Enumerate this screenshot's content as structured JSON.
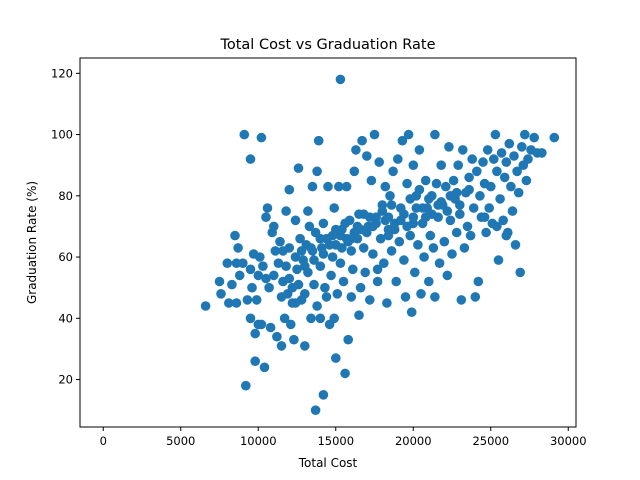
{
  "chart_data": {
    "type": "scatter",
    "title": "Total Cost vs Graduation Rate",
    "xlabel": "Total Cost",
    "ylabel": "Graduation Rate (%)",
    "xlim": [
      -1500,
      30500
    ],
    "ylim": [
      4.5,
      125
    ],
    "xticks": [
      0,
      5000,
      10000,
      15000,
      20000,
      25000,
      30000
    ],
    "yticks": [
      20,
      40,
      60,
      80,
      100,
      120
    ],
    "grid": false,
    "legend": "none",
    "marker_color": "#1f77b4",
    "points": [
      [
        6600,
        44
      ],
      [
        7500,
        52
      ],
      [
        7600,
        48
      ],
      [
        8000,
        58
      ],
      [
        8100,
        45
      ],
      [
        8300,
        51
      ],
      [
        8500,
        67
      ],
      [
        8600,
        45
      ],
      [
        8600,
        58
      ],
      [
        8700,
        63
      ],
      [
        8800,
        54
      ],
      [
        9000,
        58
      ],
      [
        9100,
        100
      ],
      [
        9200,
        18
      ],
      [
        9300,
        46
      ],
      [
        9500,
        40
      ],
      [
        9500,
        56
      ],
      [
        9500,
        92
      ],
      [
        9600,
        50
      ],
      [
        9700,
        61
      ],
      [
        9800,
        26
      ],
      [
        9800,
        35
      ],
      [
        9900,
        46
      ],
      [
        10000,
        38
      ],
      [
        10000,
        54
      ],
      [
        10100,
        60
      ],
      [
        10200,
        38
      ],
      [
        10200,
        99
      ],
      [
        10300,
        57
      ],
      [
        10400,
        24
      ],
      [
        10500,
        53
      ],
      [
        10500,
        73
      ],
      [
        10600,
        76
      ],
      [
        10700,
        50
      ],
      [
        10800,
        37
      ],
      [
        10900,
        68
      ],
      [
        11000,
        54
      ],
      [
        11000,
        70
      ],
      [
        11100,
        62
      ],
      [
        11200,
        34
      ],
      [
        11300,
        58
      ],
      [
        11400,
        65
      ],
      [
        11500,
        31
      ],
      [
        11500,
        47
      ],
      [
        11600,
        52
      ],
      [
        11700,
        40
      ],
      [
        11800,
        57
      ],
      [
        11800,
        75
      ],
      [
        11900,
        48
      ],
      [
        12000,
        63
      ],
      [
        12000,
        82
      ],
      [
        12100,
        38
      ],
      [
        12200,
        50
      ],
      [
        12200,
        45
      ],
      [
        12300,
        33
      ],
      [
        12400,
        60
      ],
      [
        12400,
        72
      ],
      [
        12500,
        56
      ],
      [
        12600,
        51
      ],
      [
        12600,
        89
      ],
      [
        12700,
        66
      ],
      [
        12800,
        46
      ],
      [
        12900,
        59
      ],
      [
        13000,
        48
      ],
      [
        13000,
        31
      ],
      [
        13100,
        64
      ],
      [
        13200,
        55
      ],
      [
        13200,
        75
      ],
      [
        13300,
        70
      ],
      [
        13400,
        40
      ],
      [
        13500,
        83
      ],
      [
        13500,
        62
      ],
      [
        13600,
        51
      ],
      [
        13700,
        10
      ],
      [
        13700,
        68
      ],
      [
        13800,
        44
      ],
      [
        13800,
        88
      ],
      [
        13900,
        98
      ],
      [
        14000,
        40
      ],
      [
        14000,
        57
      ],
      [
        14100,
        63
      ],
      [
        14200,
        15
      ],
      [
        14200,
        71
      ],
      [
        14300,
        50
      ],
      [
        14400,
        47
      ],
      [
        14400,
        66
      ],
      [
        14500,
        83
      ],
      [
        14600,
        38
      ],
      [
        14700,
        54
      ],
      [
        14800,
        60
      ],
      [
        14900,
        40
      ],
      [
        14900,
        76
      ],
      [
        15000,
        27
      ],
      [
        15000,
        64
      ],
      [
        15100,
        48
      ],
      [
        15200,
        83
      ],
      [
        15300,
        118
      ],
      [
        15300,
        58
      ],
      [
        15400,
        69
      ],
      [
        15500,
        52
      ],
      [
        15600,
        22
      ],
      [
        15700,
        66
      ],
      [
        15700,
        83
      ],
      [
        15800,
        33
      ],
      [
        15900,
        72
      ],
      [
        16000,
        47
      ],
      [
        16000,
        62
      ],
      [
        16100,
        56
      ],
      [
        16200,
        88
      ],
      [
        16300,
        95
      ],
      [
        16400,
        66
      ],
      [
        16500,
        41
      ],
      [
        16500,
        74
      ],
      [
        16600,
        50
      ],
      [
        16700,
        98
      ],
      [
        16800,
        63
      ],
      [
        16900,
        55
      ],
      [
        17000,
        93
      ],
      [
        17100,
        70
      ],
      [
        17200,
        46
      ],
      [
        17300,
        85
      ],
      [
        17400,
        61
      ],
      [
        17500,
        100
      ],
      [
        17600,
        73
      ],
      [
        17700,
        56
      ],
      [
        17700,
        52
      ],
      [
        17800,
        91
      ],
      [
        17900,
        66
      ],
      [
        18000,
        77
      ],
      [
        18100,
        58
      ],
      [
        18200,
        83
      ],
      [
        18300,
        45
      ],
      [
        18400,
        69
      ],
      [
        18500,
        80
      ],
      [
        18600,
        62
      ],
      [
        18700,
        88
      ],
      [
        18800,
        71
      ],
      [
        18900,
        52
      ],
      [
        19000,
        92
      ],
      [
        19100,
        65
      ],
      [
        19200,
        76
      ],
      [
        19300,
        98
      ],
      [
        19400,
        59
      ],
      [
        19500,
        47
      ],
      [
        19600,
        84
      ],
      [
        19700,
        100
      ],
      [
        19800,
        67
      ],
      [
        19900,
        42
      ],
      [
        20000,
        90
      ],
      [
        20000,
        73
      ],
      [
        20100,
        55
      ],
      [
        20200,
        80
      ],
      [
        20300,
        64
      ],
      [
        20400,
        95
      ],
      [
        20500,
        48
      ],
      [
        20600,
        71
      ],
      [
        20700,
        60
      ],
      [
        20800,
        85
      ],
      [
        20900,
        76
      ],
      [
        21000,
        52
      ],
      [
        21100,
        67
      ],
      [
        21200,
        80
      ],
      [
        21300,
        63
      ],
      [
        21400,
        100
      ],
      [
        21400,
        47
      ],
      [
        21500,
        84
      ],
      [
        21600,
        73
      ],
      [
        21700,
        58
      ],
      [
        21800,
        90
      ],
      [
        21900,
        77
      ],
      [
        22000,
        65
      ],
      [
        22100,
        83
      ],
      [
        22200,
        54
      ],
      [
        22300,
        96
      ],
      [
        22400,
        72
      ],
      [
        22500,
        61
      ],
      [
        22600,
        85
      ],
      [
        22700,
        79
      ],
      [
        22800,
        68
      ],
      [
        22900,
        90
      ],
      [
        23000,
        74
      ],
      [
        23100,
        46
      ],
      [
        23200,
        95
      ],
      [
        23300,
        63
      ],
      [
        23400,
        81
      ],
      [
        23500,
        70
      ],
      [
        23600,
        86
      ],
      [
        23700,
        67
      ],
      [
        23800,
        92
      ],
      [
        23900,
        76
      ],
      [
        24000,
        47
      ],
      [
        24100,
        88
      ],
      [
        24200,
        52
      ],
      [
        24300,
        80
      ],
      [
        24400,
        73
      ],
      [
        24500,
        91
      ],
      [
        24600,
        84
      ],
      [
        24700,
        68
      ],
      [
        24800,
        95
      ],
      [
        24900,
        76
      ],
      [
        25000,
        83
      ],
      [
        25100,
        71
      ],
      [
        25200,
        92
      ],
      [
        25300,
        100
      ],
      [
        25400,
        88
      ],
      [
        25500,
        59
      ],
      [
        25600,
        79
      ],
      [
        25700,
        94
      ],
      [
        25800,
        72
      ],
      [
        25900,
        86
      ],
      [
        26000,
        91
      ],
      [
        26100,
        68
      ],
      [
        26200,
        97
      ],
      [
        26300,
        83
      ],
      [
        26400,
        75
      ],
      [
        26500,
        93
      ],
      [
        26600,
        64
      ],
      [
        26700,
        88
      ],
      [
        26800,
        81
      ],
      [
        26900,
        55
      ],
      [
        27000,
        96
      ],
      [
        27100,
        90
      ],
      [
        27200,
        100
      ],
      [
        27300,
        85
      ],
      [
        27400,
        92
      ],
      [
        27600,
        95
      ],
      [
        27800,
        99
      ],
      [
        28000,
        94
      ],
      [
        28300,
        94
      ],
      [
        29100,
        99
      ],
      [
        14000,
        66
      ],
      [
        14600,
        64
      ],
      [
        15300,
        67
      ],
      [
        15800,
        65
      ],
      [
        16400,
        70
      ],
      [
        17000,
        68
      ],
      [
        17600,
        71
      ],
      [
        18200,
        72
      ],
      [
        18800,
        69
      ],
      [
        19400,
        74
      ],
      [
        20000,
        71
      ],
      [
        20600,
        76
      ],
      [
        21200,
        74
      ],
      [
        21800,
        78
      ],
      [
        22400,
        80
      ],
      [
        23000,
        77
      ],
      [
        23600,
        82
      ],
      [
        12800,
        62
      ],
      [
        13400,
        63
      ],
      [
        14200,
        61
      ],
      [
        15000,
        69
      ],
      [
        15600,
        71
      ],
      [
        16200,
        68
      ],
      [
        16800,
        74
      ],
      [
        17400,
        70
      ],
      [
        18000,
        75
      ],
      [
        18600,
        77
      ],
      [
        19200,
        72
      ],
      [
        19800,
        79
      ],
      [
        20400,
        82
      ],
      [
        21000,
        79
      ],
      [
        21600,
        77
      ],
      [
        22200,
        75
      ],
      [
        22800,
        81
      ],
      [
        16000,
        66
      ],
      [
        17200,
        73
      ],
      [
        18400,
        67
      ],
      [
        19600,
        70
      ],
      [
        20800,
        73
      ],
      [
        13000,
        57
      ],
      [
        14800,
        67
      ],
      [
        16600,
        69
      ],
      [
        18400,
        73
      ],
      [
        20200,
        76
      ],
      [
        12000,
        53
      ],
      [
        12400,
        45
      ],
      [
        13600,
        59
      ],
      [
        15400,
        63
      ],
      [
        11600,
        62
      ],
      [
        24600,
        73
      ],
      [
        25400,
        70
      ],
      [
        26000,
        67
      ]
    ]
  }
}
